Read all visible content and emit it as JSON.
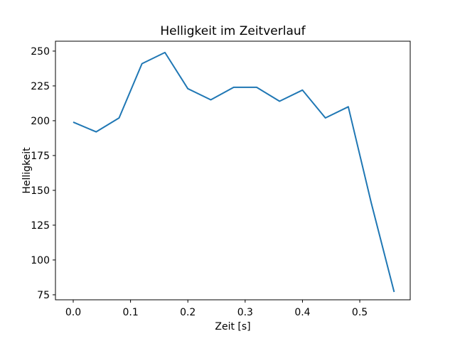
{
  "chart_data": {
    "type": "line",
    "title": "Helligkeit im Zeitverlauf",
    "xlabel": "Zeit [s]",
    "ylabel": "Helligkeit",
    "x": [
      0.0,
      0.04,
      0.08,
      0.12,
      0.16,
      0.2,
      0.24,
      0.28,
      0.32,
      0.36,
      0.4,
      0.44,
      0.48,
      0.52,
      0.56
    ],
    "series": [
      {
        "name": "Helligkeit",
        "values": [
          199,
          192,
          202,
          241,
          249,
          223,
          215,
          224,
          224,
          214,
          222,
          202,
          210,
          141,
          77
        ]
      }
    ],
    "x_ticks": {
      "values": [
        0.0,
        0.1,
        0.2,
        0.3,
        0.4,
        0.5
      ],
      "labels": [
        "0.0",
        "0.1",
        "0.2",
        "0.3",
        "0.4",
        "0.5"
      ]
    },
    "y_ticks": {
      "values": [
        75,
        100,
        125,
        150,
        175,
        200,
        225,
        250
      ],
      "labels": [
        "75",
        "100",
        "125",
        "150",
        "175",
        "200",
        "225",
        "250"
      ]
    },
    "xlim": [
      -0.031,
      0.588
    ],
    "ylim": [
      71.4,
      257.1
    ],
    "line_color": "#1f77b4",
    "background_color": "#ffffff",
    "grid": false,
    "legend": "none"
  }
}
